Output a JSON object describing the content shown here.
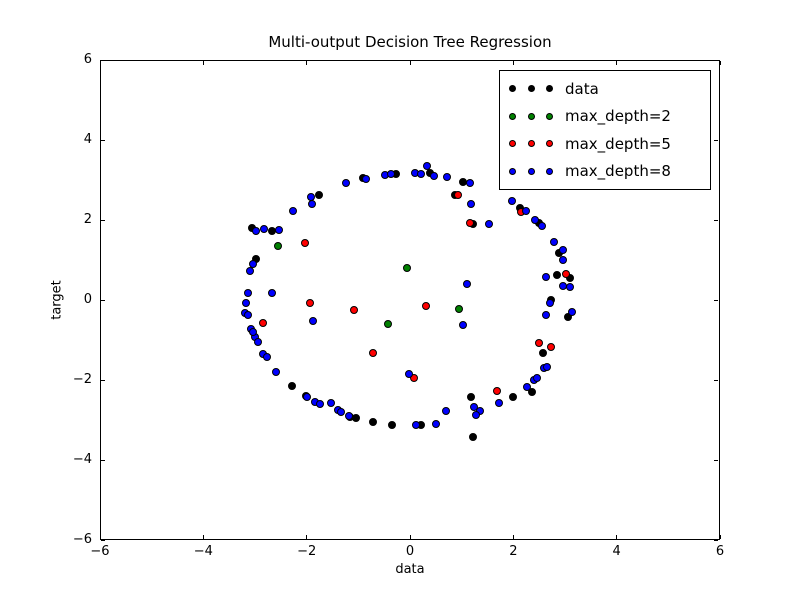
{
  "title": "Multi-output Decision Tree Regression",
  "axes": {
    "xlabel": "data",
    "ylabel": "target",
    "xlim": [
      -6,
      6
    ],
    "ylim": [
      -6,
      6
    ],
    "xticks": {
      "values": [
        -6,
        -4,
        -2,
        0,
        2,
        4,
        6
      ],
      "labels": [
        "−6",
        "−4",
        "−2",
        "0",
        "2",
        "4",
        "6"
      ]
    },
    "yticks": {
      "values": [
        -6,
        -4,
        -2,
        0,
        2,
        4,
        6
      ],
      "labels": [
        "−6",
        "−4",
        "−2",
        "0",
        "2",
        "4",
        "6"
      ]
    }
  },
  "legend": {
    "position": "upper right",
    "entries": [
      {
        "label": "data",
        "color": "#000000"
      },
      {
        "label": "max_depth=2",
        "color": "#008000"
      },
      {
        "label": "max_depth=5",
        "color": "#ff0000"
      },
      {
        "label": "max_depth=8",
        "color": "#0000ff"
      }
    ]
  },
  "chart_data": {
    "type": "scatter",
    "title": "Multi-output Decision Tree Regression",
    "xlabel": "data",
    "ylabel": "target",
    "xlim": [
      -6,
      6
    ],
    "ylim": [
      -6,
      6
    ],
    "grid": false,
    "marker_edge_color": "#000000",
    "series": [
      {
        "name": "data",
        "color": "#000000",
        "points": [
          [
            -0.91,
            3.05
          ],
          [
            -0.27,
            3.15
          ],
          [
            0.39,
            3.18
          ],
          [
            1.03,
            2.95
          ],
          [
            0.87,
            2.63
          ],
          [
            1.22,
            1.9
          ],
          [
            2.13,
            2.3
          ],
          [
            2.5,
            1.93
          ],
          [
            2.88,
            1.18
          ],
          [
            2.85,
            0.63
          ],
          [
            3.1,
            0.55
          ],
          [
            2.72,
            0.0
          ],
          [
            3.05,
            -0.42
          ],
          [
            2.57,
            -1.33
          ],
          [
            2.36,
            -2.3
          ],
          [
            1.99,
            -2.43
          ],
          [
            1.18,
            -2.43
          ],
          [
            1.22,
            -3.43
          ],
          [
            0.21,
            -3.13
          ],
          [
            -0.35,
            -3.13
          ],
          [
            -0.72,
            -3.05
          ],
          [
            -1.05,
            -2.95
          ],
          [
            -1.16,
            -2.93
          ],
          [
            -2.01,
            -2.4
          ],
          [
            -2.28,
            -2.15
          ],
          [
            -2.98,
            1.03
          ],
          [
            -3.06,
            1.8
          ],
          [
            -2.67,
            1.73
          ],
          [
            -1.76,
            2.62
          ]
        ]
      },
      {
        "name": "max_depth=2",
        "color": "#008000",
        "points": [
          [
            -2.55,
            1.35
          ],
          [
            -0.06,
            0.8
          ],
          [
            -0.43,
            -0.6
          ],
          [
            0.95,
            -0.23
          ]
        ]
      },
      {
        "name": "max_depth=5",
        "color": "#ff0000",
        "points": [
          [
            0.93,
            2.63
          ],
          [
            1.16,
            1.93
          ],
          [
            2.15,
            2.2
          ],
          [
            -2.03,
            1.43
          ],
          [
            -1.94,
            -0.08
          ],
          [
            -1.08,
            -0.25
          ],
          [
            0.31,
            -0.15
          ],
          [
            -2.84,
            -0.58
          ],
          [
            -0.72,
            -1.33
          ],
          [
            0.08,
            -1.95
          ],
          [
            1.68,
            -2.28
          ],
          [
            2.5,
            -1.08
          ],
          [
            2.73,
            -1.18
          ],
          [
            3.02,
            0.65
          ]
        ]
      },
      {
        "name": "max_depth=8",
        "color": "#0000ff",
        "points": [
          [
            -1.24,
            2.93
          ],
          [
            -0.85,
            3.03
          ],
          [
            -0.48,
            3.13
          ],
          [
            -0.37,
            3.15
          ],
          [
            0.1,
            3.18
          ],
          [
            0.21,
            3.15
          ],
          [
            0.33,
            3.35
          ],
          [
            0.46,
            3.1
          ],
          [
            0.72,
            3.08
          ],
          [
            1.16,
            2.93
          ],
          [
            1.18,
            2.4
          ],
          [
            1.53,
            1.9
          ],
          [
            1.97,
            2.48
          ],
          [
            2.24,
            2.23
          ],
          [
            2.42,
            2.0
          ],
          [
            2.55,
            1.85
          ],
          [
            2.79,
            1.46
          ],
          [
            2.97,
            1.25
          ],
          [
            2.96,
            1.0
          ],
          [
            2.63,
            0.58
          ],
          [
            2.97,
            0.35
          ],
          [
            3.1,
            0.32
          ],
          [
            2.7,
            -0.08
          ],
          [
            2.63,
            -0.38
          ],
          [
            3.13,
            -0.3
          ],
          [
            2.59,
            -1.7
          ],
          [
            2.65,
            -1.68
          ],
          [
            2.4,
            -2.0
          ],
          [
            2.46,
            -1.95
          ],
          [
            2.26,
            -2.18
          ],
          [
            1.72,
            -2.58
          ],
          [
            1.24,
            -2.68
          ],
          [
            1.36,
            -2.78
          ],
          [
            1.28,
            -2.88
          ],
          [
            0.7,
            -2.78
          ],
          [
            0.5,
            -3.1
          ],
          [
            0.12,
            -3.13
          ],
          [
            1.03,
            -0.63
          ],
          [
            1.1,
            0.4
          ],
          [
            -0.02,
            -1.85
          ],
          [
            -1.88,
            -0.53
          ],
          [
            -1.99,
            -2.43
          ],
          [
            -1.84,
            -2.55
          ],
          [
            -1.74,
            -2.6
          ],
          [
            -1.52,
            -2.58
          ],
          [
            -1.4,
            -2.75
          ],
          [
            -1.33,
            -2.8
          ],
          [
            -1.19,
            -2.9
          ],
          [
            -2.59,
            -1.8
          ],
          [
            -2.84,
            -1.35
          ],
          [
            -2.76,
            -1.43
          ],
          [
            -3.0,
            -0.93
          ],
          [
            -2.94,
            -1.05
          ],
          [
            -3.08,
            -0.73
          ],
          [
            -3.04,
            -0.8
          ],
          [
            -3.17,
            -0.08
          ],
          [
            -3.19,
            -0.33
          ],
          [
            -3.13,
            -0.38
          ],
          [
            -3.13,
            0.18
          ],
          [
            -2.67,
            0.18
          ],
          [
            -3.04,
            0.9
          ],
          [
            -3.1,
            0.73
          ],
          [
            -2.99,
            1.73
          ],
          [
            -2.82,
            1.78
          ],
          [
            -2.53,
            1.75
          ],
          [
            -1.92,
            2.57
          ],
          [
            -1.89,
            2.4
          ],
          [
            -2.26,
            2.23
          ]
        ]
      }
    ]
  }
}
